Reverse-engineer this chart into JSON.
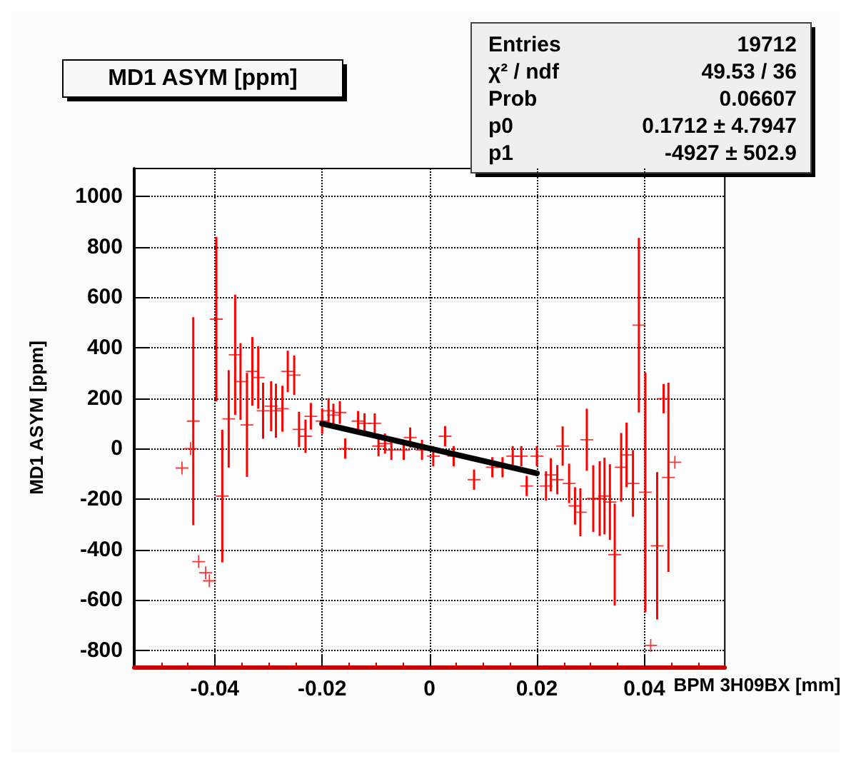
{
  "chart_data": {
    "type": "scatter",
    "title": "MD1 ASYM [ppm]",
    "xlabel": "BPM 3H09BX [mm]",
    "ylabel": "MD1 ASYM [ppm]",
    "annotations": [
      "Entries",
      "19712",
      "χ² / ndf",
      "49.53 / 36",
      "Prob",
      "0.06607",
      "p0",
      "0.1712 ± 4.7947",
      "p1",
      "-4927 ± 502.9"
    ],
    "xlim": [
      -0.055,
      0.055
    ],
    "xticks": [
      -0.04,
      -0.02,
      0,
      0.02,
      0.04
    ],
    "ylim": [
      -865,
      1110
    ],
    "yticks": [
      -800,
      -600,
      -400,
      -200,
      0,
      200,
      400,
      600,
      800,
      1000
    ],
    "grid": true,
    "marker": "cross",
    "series": [
      {
        "color": "#ff0000",
        "x": [
          -0.0461,
          -0.0445,
          -0.044,
          -0.043,
          -0.0417,
          -0.041,
          -0.0397,
          -0.0386,
          -0.0374,
          -0.0362,
          -0.0352,
          -0.034,
          -0.033,
          -0.0319,
          -0.031,
          -0.0295,
          -0.0286,
          -0.0274,
          -0.0264,
          -0.0252,
          -0.0243,
          -0.0231,
          -0.0221,
          -0.02,
          -0.0188,
          -0.0179,
          -0.0167,
          -0.0157,
          -0.0133,
          -0.0121,
          -0.0102,
          -0.0095,
          -0.0083,
          -0.0071,
          -0.0048,
          -0.0036,
          -0.0014,
          0.0007,
          0.0029,
          0.0045,
          0.0083,
          0.0117,
          0.0136,
          0.0155,
          0.0171,
          0.0181,
          0.02,
          0.0217,
          0.0226,
          0.0238,
          0.0248,
          0.026,
          0.0271,
          0.0281,
          0.0293,
          0.0305,
          0.0317,
          0.0326,
          0.0336,
          0.0345,
          0.0357,
          0.0367,
          0.0379,
          0.039,
          0.0402,
          0.0412,
          0.0424,
          0.0436,
          0.0445,
          0.0457
        ],
        "values": [
          -77,
          0,
          109,
          -448,
          -492,
          -524,
          513,
          -188,
          118,
          372,
          266,
          94,
          306,
          282,
          150,
          168,
          150,
          158,
          306,
          291,
          76,
          49,
          128,
          109,
          150,
          133,
          143,
          0,
          109,
          100,
          100,
          10,
          20,
          -5,
          -5,
          44,
          -5,
          -30,
          49,
          -30,
          -123,
          -74,
          -74,
          -30,
          -30,
          -148,
          -30,
          -148,
          -104,
          -123,
          10,
          -138,
          -227,
          -252,
          35,
          -198,
          -198,
          -188,
          -212,
          -420,
          -74,
          -25,
          -138,
          489,
          -173,
          -780,
          -385,
          198,
          -114,
          -54
        ],
        "errors": [
          null,
          null,
          412,
          null,
          null,
          null,
          326,
          263,
          193,
          238,
          152,
          206,
          136,
          124,
          111,
          99,
          107,
          91,
          82,
          78,
          70,
          66,
          53,
          50,
          50,
          45,
          45,
          40,
          40,
          40,
          40,
          40,
          40,
          40,
          40,
          40,
          40,
          40,
          40,
          40,
          40,
          40,
          40,
          40,
          40,
          40,
          40,
          58,
          66,
          58,
          78,
          78,
          74,
          95,
          123,
          132,
          148,
          152,
          150,
          202,
          136,
          128,
          132,
          346,
          474,
          null,
          292,
          58,
          375,
          null
        ]
      },
      {
        "type": "line",
        "color": "#000000",
        "marker": "none",
        "x": [
          -0.02,
          0.02
        ],
        "values": [
          99,
          -98
        ]
      }
    ]
  }
}
